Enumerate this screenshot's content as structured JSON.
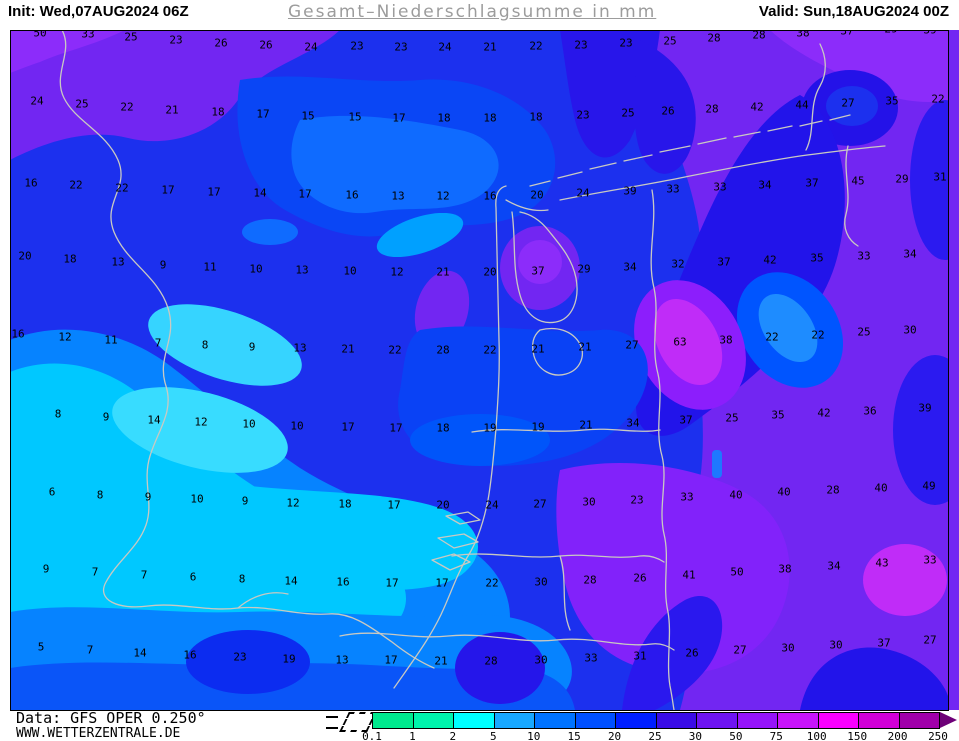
{
  "header": {
    "init": "Init: Wed,07AUG2024 06Z",
    "title": "Gesamt–Niederschlagsumme in mm",
    "valid": "Valid: Sun,18AUG2024 00Z"
  },
  "footer": {
    "source": "Data: GFS OPER 0.250°",
    "site": "WWW.WETTERZENTRALE.DE"
  },
  "colorbar": {
    "unit": "mm",
    "labels": [
      "0.1",
      "1",
      "2",
      "5",
      "10",
      "15",
      "20",
      "25",
      "30",
      "50",
      "75",
      "100",
      "150",
      "200",
      "250"
    ],
    "segment_colors": [
      "#00ea8e",
      "#00f4ac",
      "#00ffff",
      "#18a8ff",
      "#0073ff",
      "#0050ff",
      "#001eff",
      "#3a0ce6",
      "#6e14f2",
      "#9614fa",
      "#c814fa",
      "#fa00ff",
      "#d200d7",
      "#a000aa"
    ],
    "arrow_color": "#6e0078",
    "no_precip_symbol": "dashed-hatch-box"
  },
  "map": {
    "region": "Netherlands / North Sea / NW Germany / Belgium / SE England",
    "quantity": "total precipitation sum (mm)",
    "values": [
      [
        40,
        33,
        "50"
      ],
      [
        88,
        34,
        "33"
      ],
      [
        131,
        37,
        "25"
      ],
      [
        176,
        40,
        "23"
      ],
      [
        221,
        43,
        "26"
      ],
      [
        266,
        45,
        "26"
      ],
      [
        311,
        47,
        "24"
      ],
      [
        357,
        46,
        "23"
      ],
      [
        401,
        47,
        "23"
      ],
      [
        445,
        47,
        "24"
      ],
      [
        490,
        47,
        "21"
      ],
      [
        536,
        46,
        "22"
      ],
      [
        581,
        45,
        "23"
      ],
      [
        626,
        43,
        "23"
      ],
      [
        670,
        41,
        "25"
      ],
      [
        714,
        38,
        "28"
      ],
      [
        759,
        35,
        "28"
      ],
      [
        803,
        33,
        "38"
      ],
      [
        847,
        31,
        "37"
      ],
      [
        891,
        29,
        "29"
      ],
      [
        930,
        30,
        "39"
      ],
      [
        37,
        101,
        "24"
      ],
      [
        82,
        104,
        "25"
      ],
      [
        127,
        107,
        "22"
      ],
      [
        172,
        110,
        "21"
      ],
      [
        218,
        112,
        "18"
      ],
      [
        263,
        114,
        "17"
      ],
      [
        308,
        116,
        "15"
      ],
      [
        355,
        117,
        "15"
      ],
      [
        399,
        118,
        "17"
      ],
      [
        444,
        118,
        "18"
      ],
      [
        490,
        118,
        "18"
      ],
      [
        536,
        117,
        "18"
      ],
      [
        583,
        115,
        "23"
      ],
      [
        628,
        113,
        "25"
      ],
      [
        668,
        111,
        "26"
      ],
      [
        712,
        109,
        "28"
      ],
      [
        757,
        107,
        "42"
      ],
      [
        802,
        105,
        "44"
      ],
      [
        848,
        103,
        "27"
      ],
      [
        892,
        101,
        "35"
      ],
      [
        938,
        99,
        "22"
      ],
      [
        31,
        183,
        "16"
      ],
      [
        76,
        185,
        "22"
      ],
      [
        122,
        188,
        "22"
      ],
      [
        168,
        190,
        "17"
      ],
      [
        214,
        192,
        "17"
      ],
      [
        260,
        193,
        "14"
      ],
      [
        305,
        194,
        "17"
      ],
      [
        352,
        195,
        "16"
      ],
      [
        398,
        196,
        "13"
      ],
      [
        443,
        196,
        "12"
      ],
      [
        490,
        196,
        "16"
      ],
      [
        537,
        195,
        "20"
      ],
      [
        583,
        193,
        "24"
      ],
      [
        630,
        191,
        "39"
      ],
      [
        673,
        189,
        "33"
      ],
      [
        720,
        187,
        "33"
      ],
      [
        765,
        185,
        "34"
      ],
      [
        812,
        183,
        "37"
      ],
      [
        858,
        181,
        "45"
      ],
      [
        902,
        179,
        "29"
      ],
      [
        940,
        177,
        "31"
      ],
      [
        25,
        256,
        "20"
      ],
      [
        70,
        259,
        "18"
      ],
      [
        118,
        262,
        "13"
      ],
      [
        163,
        265,
        "9"
      ],
      [
        210,
        267,
        "11"
      ],
      [
        256,
        269,
        "10"
      ],
      [
        302,
        270,
        "13"
      ],
      [
        350,
        271,
        "10"
      ],
      [
        397,
        272,
        "12"
      ],
      [
        443,
        272,
        "21"
      ],
      [
        490,
        272,
        "20"
      ],
      [
        538,
        271,
        "37"
      ],
      [
        584,
        269,
        "29"
      ],
      [
        630,
        267,
        "34"
      ],
      [
        678,
        264,
        "32"
      ],
      [
        724,
        262,
        "37"
      ],
      [
        770,
        260,
        "42"
      ],
      [
        817,
        258,
        "35"
      ],
      [
        864,
        256,
        "33"
      ],
      [
        910,
        254,
        "34"
      ],
      [
        18,
        334,
        "16"
      ],
      [
        65,
        337,
        "12"
      ],
      [
        111,
        340,
        "11"
      ],
      [
        158,
        343,
        "7"
      ],
      [
        205,
        345,
        "8"
      ],
      [
        252,
        347,
        "9"
      ],
      [
        300,
        348,
        "13"
      ],
      [
        348,
        349,
        "21"
      ],
      [
        395,
        350,
        "22"
      ],
      [
        443,
        350,
        "28"
      ],
      [
        490,
        350,
        "22"
      ],
      [
        538,
        349,
        "21"
      ],
      [
        585,
        347,
        "21"
      ],
      [
        632,
        345,
        "27"
      ],
      [
        680,
        342,
        "63"
      ],
      [
        726,
        340,
        "38"
      ],
      [
        772,
        337,
        "22"
      ],
      [
        818,
        335,
        "22"
      ],
      [
        864,
        332,
        "25"
      ],
      [
        910,
        330,
        "30"
      ],
      [
        58,
        414,
        "8"
      ],
      [
        106,
        417,
        "9"
      ],
      [
        154,
        420,
        "14"
      ],
      [
        201,
        422,
        "12"
      ],
      [
        249,
        424,
        "10"
      ],
      [
        297,
        426,
        "10"
      ],
      [
        348,
        427,
        "17"
      ],
      [
        396,
        428,
        "17"
      ],
      [
        443,
        428,
        "18"
      ],
      [
        490,
        428,
        "19"
      ],
      [
        538,
        427,
        "19"
      ],
      [
        586,
        425,
        "21"
      ],
      [
        633,
        423,
        "34"
      ],
      [
        686,
        420,
        "37"
      ],
      [
        732,
        418,
        "25"
      ],
      [
        778,
        415,
        "35"
      ],
      [
        824,
        413,
        "42"
      ],
      [
        870,
        411,
        "36"
      ],
      [
        925,
        408,
        "39"
      ],
      [
        52,
        492,
        "6"
      ],
      [
        100,
        495,
        "8"
      ],
      [
        148,
        497,
        "9"
      ],
      [
        197,
        499,
        "10"
      ],
      [
        245,
        501,
        "9"
      ],
      [
        293,
        503,
        "12"
      ],
      [
        345,
        504,
        "18"
      ],
      [
        394,
        505,
        "17"
      ],
      [
        443,
        505,
        "20"
      ],
      [
        492,
        505,
        "24"
      ],
      [
        540,
        504,
        "27"
      ],
      [
        589,
        502,
        "30"
      ],
      [
        637,
        500,
        "23"
      ],
      [
        687,
        497,
        "33"
      ],
      [
        736,
        495,
        "40"
      ],
      [
        784,
        492,
        "40"
      ],
      [
        833,
        490,
        "28"
      ],
      [
        881,
        488,
        "40"
      ],
      [
        929,
        486,
        "49"
      ],
      [
        46,
        569,
        "9"
      ],
      [
        95,
        572,
        "7"
      ],
      [
        144,
        575,
        "7"
      ],
      [
        193,
        577,
        "6"
      ],
      [
        242,
        579,
        "8"
      ],
      [
        291,
        581,
        "14"
      ],
      [
        343,
        582,
        "16"
      ],
      [
        392,
        583,
        "17"
      ],
      [
        442,
        583,
        "17"
      ],
      [
        492,
        583,
        "22"
      ],
      [
        541,
        582,
        "30"
      ],
      [
        590,
        580,
        "28"
      ],
      [
        640,
        578,
        "26"
      ],
      [
        689,
        575,
        "41"
      ],
      [
        737,
        572,
        "50"
      ],
      [
        785,
        569,
        "38"
      ],
      [
        834,
        566,
        "34"
      ],
      [
        882,
        563,
        "43"
      ],
      [
        930,
        560,
        "33"
      ],
      [
        41,
        647,
        "5"
      ],
      [
        90,
        650,
        "7"
      ],
      [
        140,
        653,
        "14"
      ],
      [
        190,
        655,
        "16"
      ],
      [
        240,
        657,
        "23"
      ],
      [
        289,
        659,
        "19"
      ],
      [
        342,
        660,
        "13"
      ],
      [
        391,
        660,
        "17"
      ],
      [
        441,
        661,
        "21"
      ],
      [
        491,
        661,
        "28"
      ],
      [
        541,
        660,
        "30"
      ],
      [
        591,
        658,
        "33"
      ],
      [
        640,
        656,
        "31"
      ],
      [
        692,
        653,
        "26"
      ],
      [
        740,
        650,
        "27"
      ],
      [
        788,
        648,
        "30"
      ],
      [
        836,
        645,
        "30"
      ],
      [
        884,
        643,
        "37"
      ],
      [
        930,
        640,
        "27"
      ]
    ]
  }
}
